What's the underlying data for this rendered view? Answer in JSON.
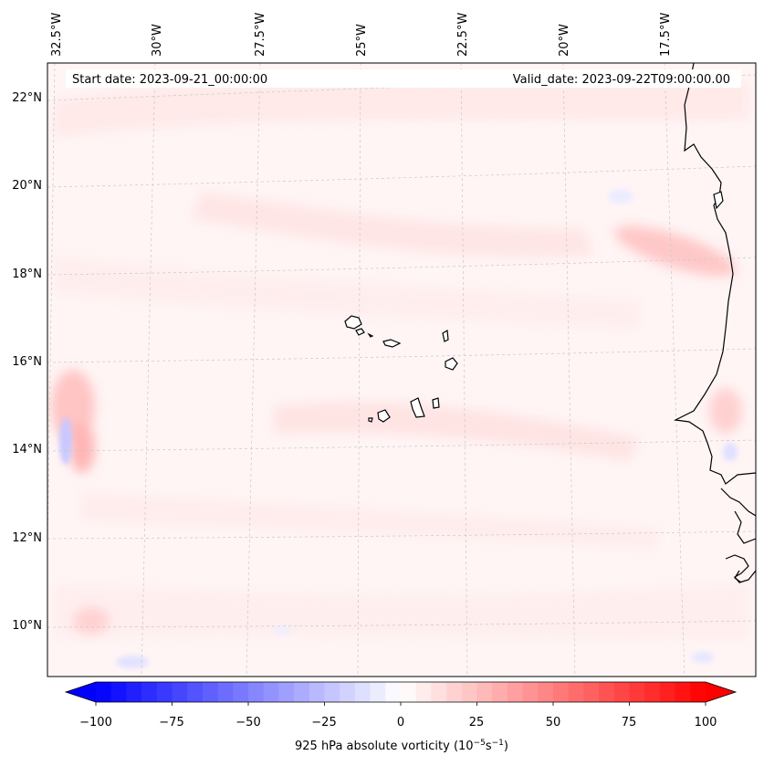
{
  "map": {
    "start_date": "Start date: 2023-09-21_00:00:00",
    "valid_date": "Valid_date: 2023-09-22T09:00:00.00",
    "lon_labels": [
      "32.5°W",
      "30°W",
      "27.5°W",
      "25°W",
      "22.5°W",
      "20°W",
      "17.5°W"
    ],
    "lat_labels": [
      "22°N",
      "20°N",
      "18°N",
      "16°N",
      "14°N",
      "12°N",
      "10°N"
    ]
  },
  "colorbar": {
    "label_prefix": "925 hPa absolute vorticity (10",
    "exp1": "−5",
    "mid": "s",
    "exp2": "−1",
    "suffix": ")",
    "ticks": [
      "−100",
      "−75",
      "−50",
      "−25",
      "0",
      "25",
      "50",
      "75",
      "100"
    ],
    "min_color": "#0000ff",
    "max_color": "#ff0000"
  },
  "features": [
    "cape-verde-islands",
    "west-africa-coastline"
  ]
}
